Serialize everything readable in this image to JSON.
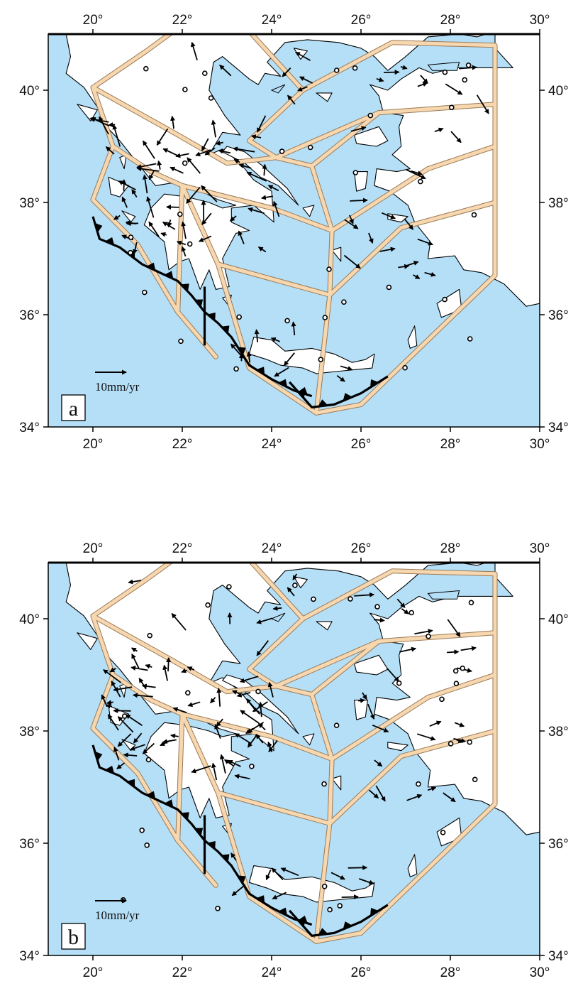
{
  "figure": {
    "panels": [
      {
        "letter": "a",
        "scale_label": "10mm/yr"
      },
      {
        "letter": "b",
        "scale_label": "10mm/yr"
      }
    ],
    "x_ticks": [
      "20°",
      "22°",
      "24°",
      "26°",
      "28°",
      "30°"
    ],
    "y_ticks": [
      "34°",
      "36°",
      "38°",
      "40°"
    ],
    "lon_range": [
      19,
      30
    ],
    "lat_range": [
      34,
      41
    ],
    "colors": {
      "sea": "#b4dff7",
      "land": "#ffffff",
      "coast": "#000000",
      "block_boundary": "#f7d7b0",
      "block_boundary_edge": "#9a7a55",
      "vector": "#000000",
      "trench": "#000000"
    }
  }
}
